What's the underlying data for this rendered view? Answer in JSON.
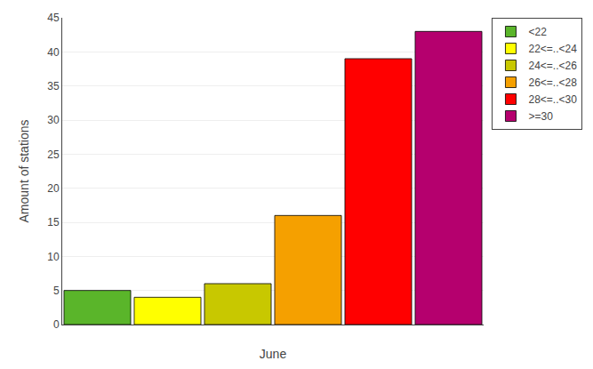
{
  "chart_data": {
    "type": "bar",
    "xlabel": "June",
    "ylabel": "Amount of stations",
    "categories": [
      "<22",
      "22<=..<24",
      "24<=..<26",
      "26<=..<28",
      "28<=..<30",
      ">=30"
    ],
    "values": [
      5,
      4,
      6,
      16,
      39,
      43
    ],
    "colors": [
      "#5ab52a",
      "#ffff00",
      "#c8c800",
      "#f5a000",
      "#ff0000",
      "#b5006e"
    ],
    "ylim": [
      0,
      45
    ],
    "yticks": [
      0,
      5,
      10,
      15,
      20,
      25,
      30,
      35,
      40,
      45
    ],
    "grid": true,
    "legend": "upper right",
    "tick_labels": "y"
  }
}
